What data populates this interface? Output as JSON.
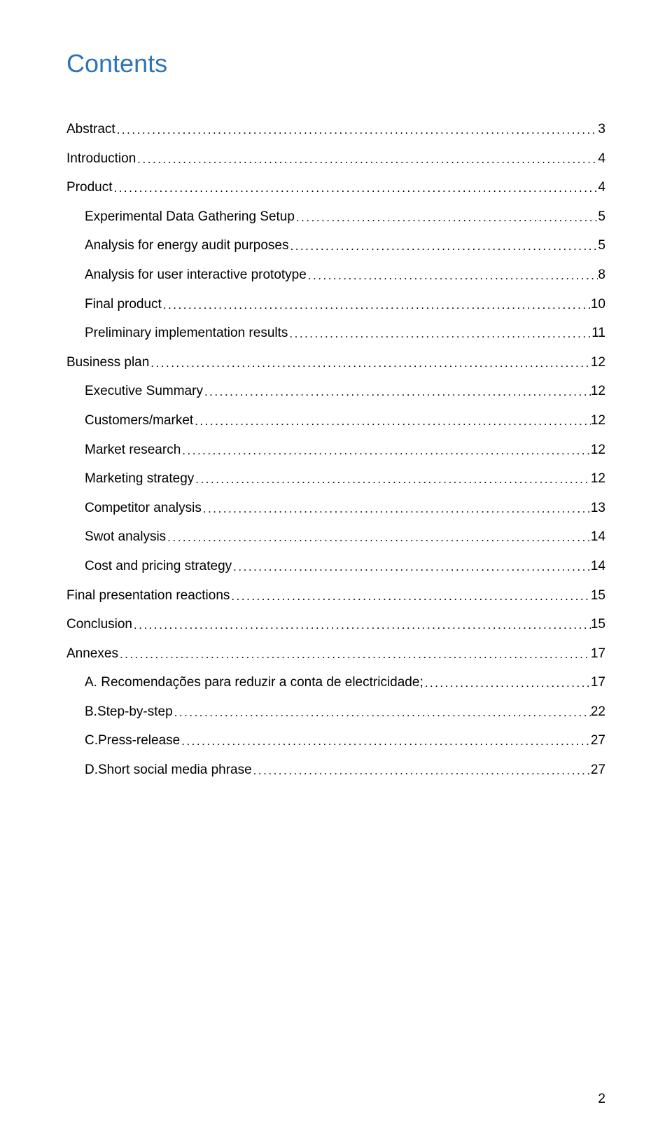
{
  "title": {
    "text": "Contents",
    "color": "#2e74b5"
  },
  "toc": {
    "text_color": "#000000",
    "font_size_pt": 14,
    "entries": [
      {
        "label": "Abstract",
        "page": "3",
        "indent": 0
      },
      {
        "label": "Introduction",
        "page": "4",
        "indent": 0
      },
      {
        "label": "Product",
        "page": "4",
        "indent": 0
      },
      {
        "label": "Experimental Data Gathering Setup",
        "page": "5",
        "indent": 1
      },
      {
        "label": "Analysis for energy audit purposes",
        "page": "5",
        "indent": 1
      },
      {
        "label": "Analysis for user interactive prototype",
        "page": "8",
        "indent": 1
      },
      {
        "label": "Final product",
        "page": "10",
        "indent": 1
      },
      {
        "label": "Preliminary implementation results",
        "page": "11",
        "indent": 1
      },
      {
        "label": "Business plan",
        "page": "12",
        "indent": 0
      },
      {
        "label": "Executive Summary",
        "page": "12",
        "indent": 1
      },
      {
        "label": "Customers/market",
        "page": "12",
        "indent": 1
      },
      {
        "label": "Market research",
        "page": "12",
        "indent": 1
      },
      {
        "label": "Marketing strategy",
        "page": "12",
        "indent": 1
      },
      {
        "label": "Competitor analysis",
        "page": "13",
        "indent": 1
      },
      {
        "label": "Swot analysis",
        "page": "14",
        "indent": 1
      },
      {
        "label": "Cost and pricing strategy",
        "page": "14",
        "indent": 1
      },
      {
        "label": "Final presentation reactions",
        "page": "15",
        "indent": 0
      },
      {
        "label": "Conclusion",
        "page": "15",
        "indent": 0
      },
      {
        "label": "Annexes",
        "page": "17",
        "indent": 0
      },
      {
        "label": "A. Recomendações para reduzir a conta de electricidade;",
        "page": "17",
        "indent": 1
      },
      {
        "label": "B.Step-by-step",
        "page": "22",
        "indent": 1
      },
      {
        "label": "C.Press-release",
        "page": "27",
        "indent": 1
      },
      {
        "label": "D.Short social media phrase",
        "page": "27",
        "indent": 1
      }
    ]
  },
  "page_number": "2",
  "background_color": "#ffffff"
}
